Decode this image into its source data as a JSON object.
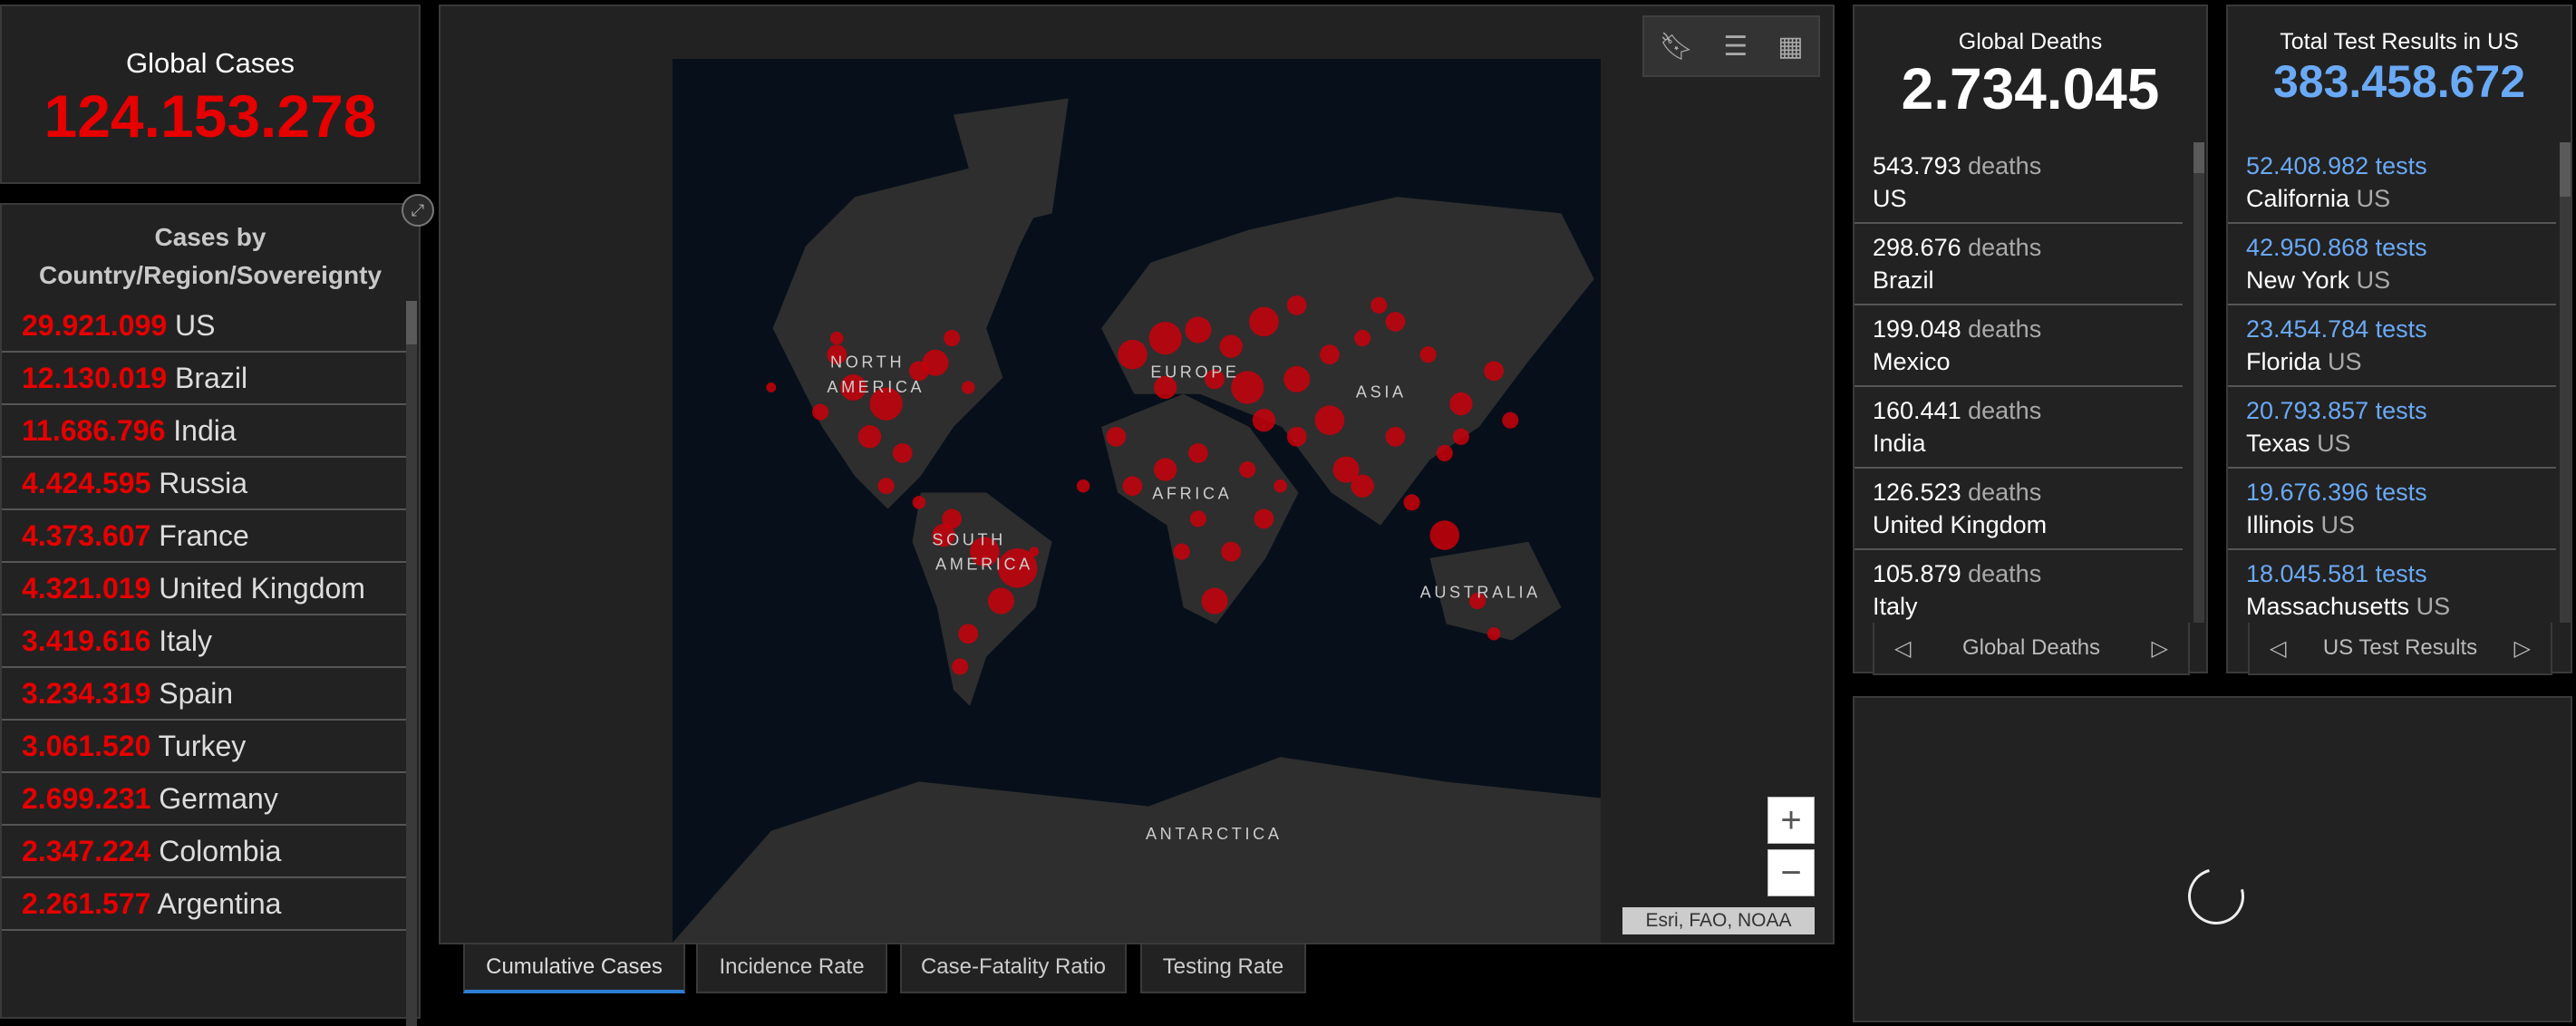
{
  "global_cases": {
    "title": "Global Cases",
    "value": "124.153.278"
  },
  "cases_list": {
    "title_line1": "Cases by",
    "title_line2": "Country/Region/Sovereignty",
    "rows": [
      {
        "value": "29.921.099",
        "name": "US"
      },
      {
        "value": "12.130.019",
        "name": "Brazil"
      },
      {
        "value": "11.686.796",
        "name": "India"
      },
      {
        "value": "4.424.595",
        "name": "Russia"
      },
      {
        "value": "4.373.607",
        "name": "France"
      },
      {
        "value": "4.321.019",
        "name": "United Kingdom"
      },
      {
        "value": "3.419.616",
        "name": "Italy"
      },
      {
        "value": "3.234.319",
        "name": "Spain"
      },
      {
        "value": "3.061.520",
        "name": "Turkey"
      },
      {
        "value": "2.699.231",
        "name": "Germany"
      },
      {
        "value": "2.347.224",
        "name": "Colombia"
      },
      {
        "value": "2.261.577",
        "name": "Argentina"
      }
    ]
  },
  "map": {
    "labels": {
      "north": "NORTH",
      "america": "AMERICA",
      "south": "SOUTH",
      "europe": "EUROPE",
      "asia": "ASIA",
      "africa": "AFRICA",
      "australia": "AUSTRALIA",
      "antarctica": "ANTARCTICA"
    },
    "attribution": "Esri, FAO, NOAA",
    "zoom_in": "+",
    "zoom_out": "−",
    "tabs": [
      {
        "label": "Cumulative Cases",
        "active": true
      },
      {
        "label": "Incidence Rate"
      },
      {
        "label": "Case-Fatality Ratio"
      },
      {
        "label": "Testing Rate"
      }
    ],
    "land_color": "#2e2e2e",
    "ocean_color": "#07101a",
    "dot_color": "#c8000b"
  },
  "global_deaths": {
    "title": "Global Deaths",
    "value": "2.734.045",
    "unit": "deaths",
    "rows": [
      {
        "value": "543.793",
        "name": "US"
      },
      {
        "value": "298.676",
        "name": "Brazil"
      },
      {
        "value": "199.048",
        "name": "Mexico"
      },
      {
        "value": "160.441",
        "name": "India"
      },
      {
        "value": "126.523",
        "name": "United Kingdom"
      },
      {
        "value": "105.879",
        "name": "Italy"
      }
    ],
    "footer": "Global Deaths"
  },
  "test_results": {
    "title": "Total Test Results in US",
    "value": "383.458.672",
    "unit": "tests",
    "rows": [
      {
        "value": "52.408.982",
        "name": "California",
        "suffix": "US"
      },
      {
        "value": "42.950.868",
        "name": "New York",
        "suffix": "US"
      },
      {
        "value": "23.454.784",
        "name": "Florida",
        "suffix": "US"
      },
      {
        "value": "20.793.857",
        "name": "Texas",
        "suffix": "US"
      },
      {
        "value": "19.676.396",
        "name": "Illinois",
        "suffix": "US"
      },
      {
        "value": "18.045.581",
        "name": "Massachusetts",
        "suffix": "US"
      }
    ],
    "footer": "US Test Results"
  },
  "colors": {
    "cases_red": "#e60000",
    "tests_blue": "#6aa9f5",
    "panel": "#222222"
  }
}
